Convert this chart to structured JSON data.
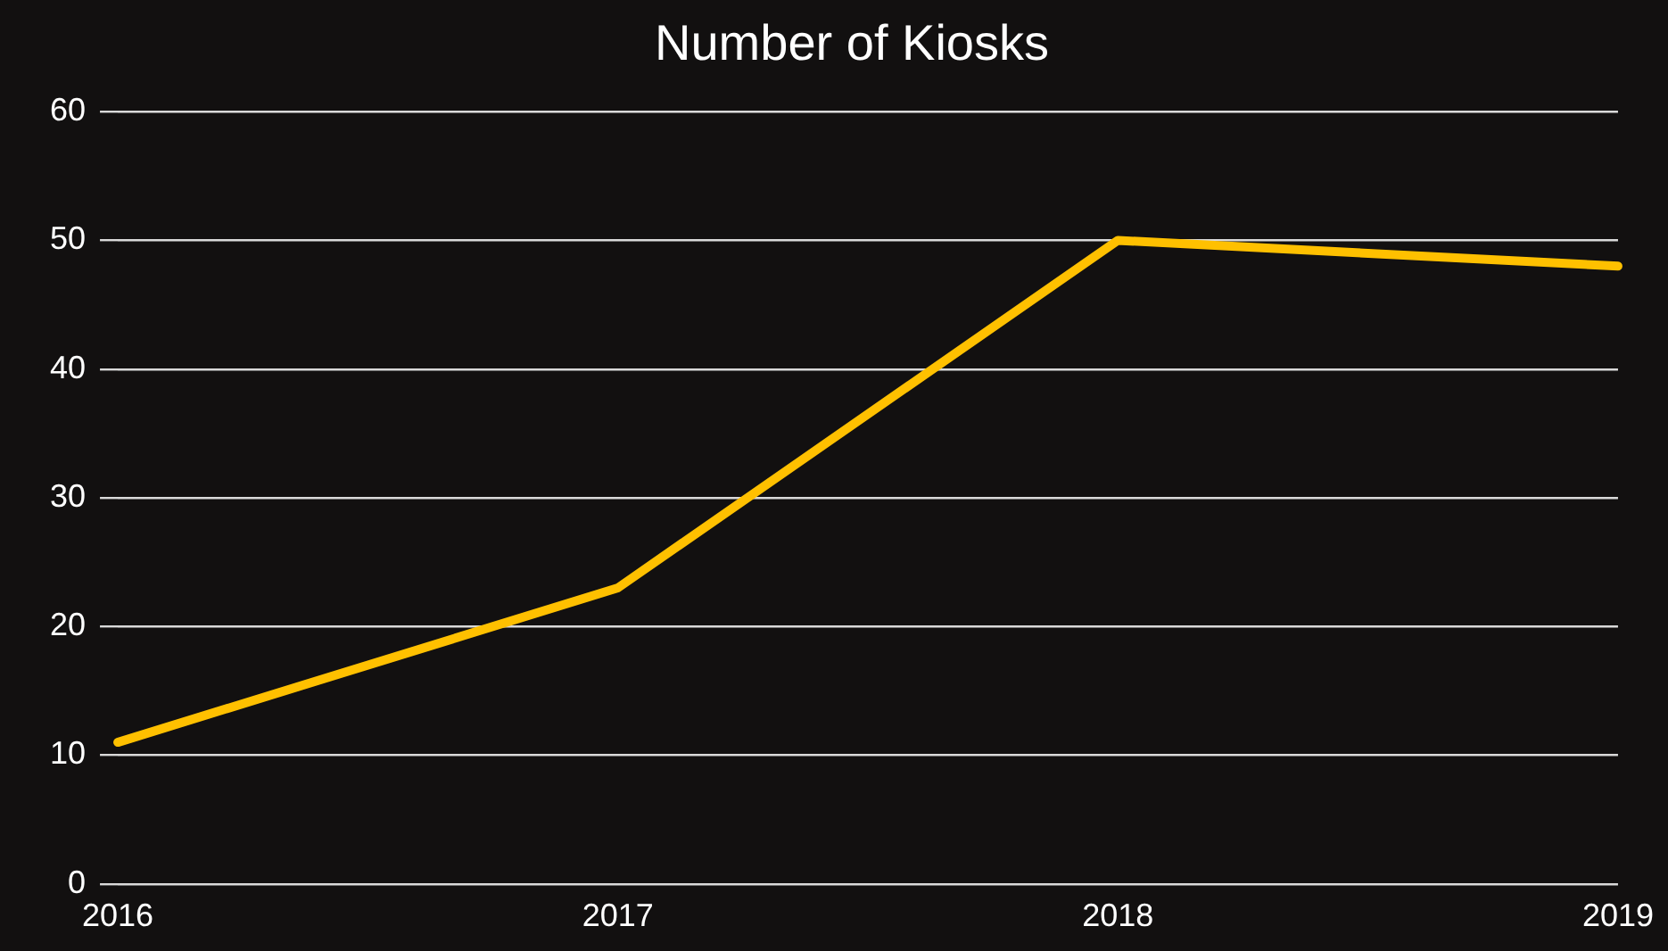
{
  "chart_data": {
    "type": "line",
    "title": "Number of Kiosks",
    "categories": [
      "2016",
      "2017",
      "2018",
      "2019"
    ],
    "series": [
      {
        "color": "#ffc000",
        "values": [
          11,
          23,
          50,
          48
        ]
      }
    ],
    "ylim": [
      0,
      60
    ],
    "yticks": [
      0,
      10,
      20,
      30,
      40,
      50,
      60
    ],
    "grid": "y",
    "legend": false,
    "marker": "none",
    "line_style": "solid"
  }
}
